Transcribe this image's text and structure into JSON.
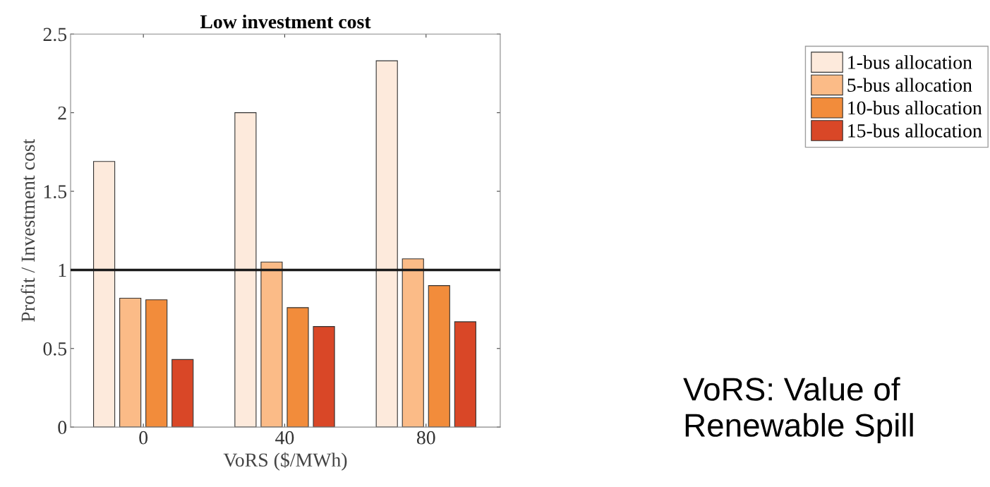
{
  "chart_data": {
    "type": "bar",
    "title": "Low investment cost",
    "xlabel": "VoRS ($/MWh)",
    "ylabel": "Profit / Investment cost",
    "categories": [
      "0",
      "40",
      "80"
    ],
    "series": [
      {
        "name": "1-bus allocation",
        "color": "#fdeadc",
        "values": [
          1.69,
          2.0,
          2.33
        ]
      },
      {
        "name": "5-bus allocation",
        "color": "#fbbb87",
        "values": [
          0.82,
          1.05,
          1.07
        ]
      },
      {
        "name": "10-bus allocation",
        "color": "#f28c3b",
        "values": [
          0.81,
          0.76,
          0.9
        ]
      },
      {
        "name": "15-bus allocation",
        "color": "#d94727",
        "values": [
          0.43,
          0.64,
          0.67
        ]
      }
    ],
    "ylim": [
      0,
      2.5
    ],
    "yticks": [
      0,
      0.5,
      1,
      1.5,
      2,
      2.5
    ],
    "ref_lines": [
      {
        "axis": "y",
        "value": 1,
        "color": "#1a1a1a"
      }
    ],
    "annotations": [
      "VoRS: Value of\nRenewable Spill"
    ],
    "legend": "top right",
    "grid": false
  }
}
